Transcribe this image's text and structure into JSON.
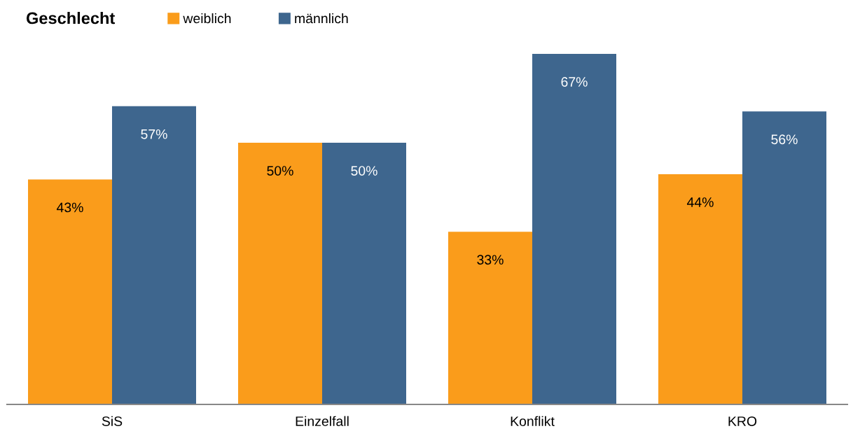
{
  "chart_data": {
    "type": "bar",
    "title": "Geschlecht",
    "categories": [
      "SiS",
      "Einzelfall",
      "Konflikt",
      "KRO"
    ],
    "series": [
      {
        "name": "weiblich",
        "color": "#fa9c1b",
        "values": [
          43,
          50,
          33,
          44
        ],
        "value_labels": [
          "43%",
          "50%",
          "33%",
          "44%"
        ]
      },
      {
        "name": "männlich",
        "color": "#3e668e",
        "values": [
          57,
          50,
          67,
          56
        ],
        "value_labels": [
          "57%",
          "50%",
          "67%",
          "56%"
        ]
      }
    ],
    "legend": "top left",
    "tick_labels": "x"
  }
}
